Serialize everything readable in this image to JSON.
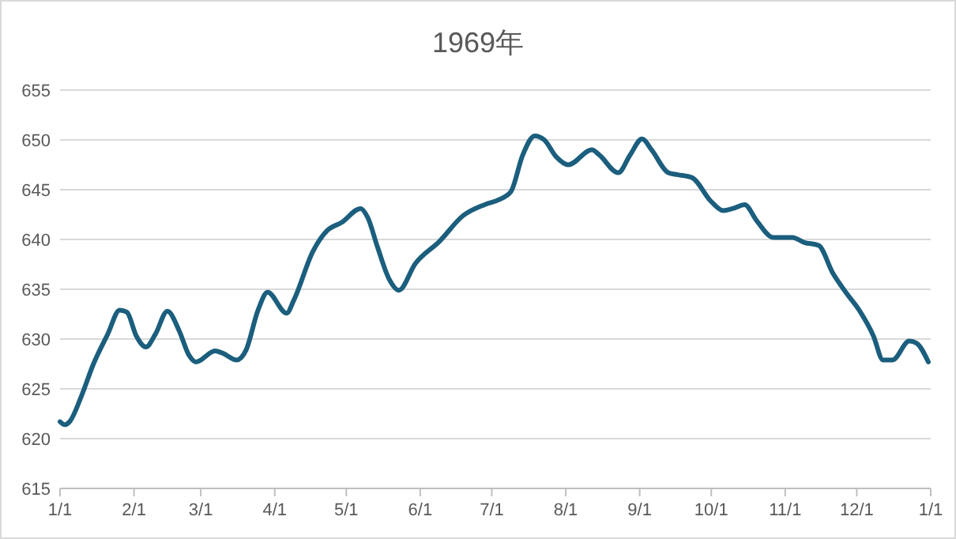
{
  "chart_data": {
    "type": "line",
    "title": "1969年",
    "x": [
      "1969-01-01",
      "1969-01-03",
      "1969-01-05",
      "1969-01-10",
      "1969-01-15",
      "1969-01-21",
      "1969-01-26",
      "1969-01-29",
      "1969-02-02",
      "1969-02-06",
      "1969-02-10",
      "1969-02-15",
      "1969-02-20",
      "1969-02-24",
      "1969-02-27",
      "1969-03-07",
      "1969-03-10",
      "1969-03-16",
      "1969-03-20",
      "1969-03-25",
      "1969-03-29",
      "1969-04-06",
      "1969-04-09",
      "1969-04-17",
      "1969-04-23",
      "1969-04-29",
      "1969-05-07",
      "1969-05-10",
      "1969-05-14",
      "1969-05-19",
      "1969-05-23",
      "1969-05-30",
      "1969-06-09",
      "1969-06-19",
      "1969-06-28",
      "1969-07-04",
      "1969-07-09",
      "1969-07-14",
      "1969-07-19",
      "1969-07-23",
      "1969-07-28",
      "1969-08-02",
      "1969-08-12",
      "1969-08-15",
      "1969-08-23",
      "1969-08-28",
      "1969-09-02",
      "1969-09-06",
      "1969-09-13",
      "1969-09-17",
      "1969-09-23",
      "1969-10-01",
      "1969-10-06",
      "1969-10-10",
      "1969-10-15",
      "1969-10-20",
      "1969-10-27",
      "1969-11-04",
      "1969-11-09",
      "1969-11-15",
      "1969-11-21",
      "1969-11-27",
      "1969-12-02",
      "1969-12-08",
      "1969-12-12",
      "1969-12-16",
      "1969-12-23",
      "1969-12-26",
      "1969-12-31"
    ],
    "series": [
      {
        "color": "#1b5e7d",
        "values": [
          621.7,
          621.4,
          621.7,
          624.3,
          627.5,
          630.5,
          632.9,
          632.7,
          630.3,
          629.2,
          630.5,
          632.8,
          630.8,
          628.4,
          627.7,
          628.8,
          628.6,
          627.9,
          628.9,
          632.9,
          634.7,
          632.6,
          633.9,
          638.8,
          640.9,
          641.7,
          643.1,
          642.2,
          639.3,
          636.0,
          634.9,
          637.6,
          639.8,
          642.4,
          643.5,
          644.0,
          644.8,
          648.5,
          650.4,
          650.0,
          648.3,
          647.5,
          649.0,
          648.5,
          646.7,
          648.5,
          650.1,
          649.0,
          646.7,
          646.5,
          646.2,
          643.8,
          642.9,
          643.1,
          643.5,
          641.9,
          640.2,
          640.2,
          639.7,
          639.4,
          636.6,
          634.5,
          632.9,
          630.3,
          627.9,
          627.9,
          629.8,
          629.6,
          627.7
        ]
      }
    ],
    "xlim": [
      "1969-01-01",
      "1970-01-01"
    ],
    "xticks": [
      {
        "value": "1969-01-01",
        "label": "1/1"
      },
      {
        "value": "1969-02-01",
        "label": "2/1"
      },
      {
        "value": "1969-03-01",
        "label": "3/1"
      },
      {
        "value": "1969-04-01",
        "label": "4/1"
      },
      {
        "value": "1969-05-01",
        "label": "5/1"
      },
      {
        "value": "1969-06-01",
        "label": "6/1"
      },
      {
        "value": "1969-07-01",
        "label": "7/1"
      },
      {
        "value": "1969-08-01",
        "label": "8/1"
      },
      {
        "value": "1969-09-01",
        "label": "9/1"
      },
      {
        "value": "1969-10-01",
        "label": "10/1"
      },
      {
        "value": "1969-11-01",
        "label": "11/1"
      },
      {
        "value": "1969-12-01",
        "label": "12/1"
      },
      {
        "value": "1970-01-01",
        "label": "1/1"
      }
    ],
    "ylim": [
      615,
      655
    ],
    "yticks": [
      615,
      620,
      625,
      630,
      635,
      640,
      645,
      650,
      655
    ],
    "grid": "y",
    "marker": "none",
    "line_style": "solid"
  }
}
